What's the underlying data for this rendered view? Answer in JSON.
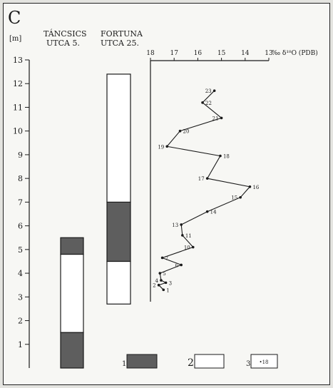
{
  "panel_label": "C",
  "colors": {
    "filled": "#5e5e5e",
    "stroke": "#1a1a1a",
    "empty": "#ffffff"
  },
  "chart_data": [
    {
      "type": "table",
      "subtype": "stratigraphic-column",
      "unit_label": "[m]",
      "ylim": [
        0,
        13
      ],
      "y_ticks": [
        1,
        2,
        3,
        4,
        5,
        6,
        7,
        8,
        9,
        10,
        11,
        12,
        13
      ],
      "columns": [
        {
          "name_line1": "TÁNCSICS",
          "name_line2": "UTCA 5.",
          "intervals": [
            {
              "bottom": 0.0,
              "top": 1.5,
              "type": 1
            },
            {
              "bottom": 1.5,
              "top": 4.8,
              "type": 2
            },
            {
              "bottom": 4.8,
              "top": 5.5,
              "type": 1
            }
          ]
        },
        {
          "name_line1": "FORTUNA",
          "name_line2": "UTCA 25.",
          "intervals": [
            {
              "bottom": 2.7,
              "top": 4.5,
              "type": 2
            },
            {
              "bottom": 4.5,
              "top": 7.0,
              "type": 1
            },
            {
              "bottom": 7.0,
              "top": 12.4,
              "type": 2
            }
          ]
        }
      ]
    },
    {
      "type": "line",
      "title": "‰ δ¹⁸O (PDB)",
      "x_ticks": [
        "18",
        "17",
        "16",
        "15",
        "14",
        "13"
      ],
      "xlim": [
        18,
        13
      ],
      "ylim": [
        0,
        13
      ],
      "points": [
        {
          "label": "1",
          "x": 17.45,
          "y": 3.3
        },
        {
          "label": "2",
          "x": 17.65,
          "y": 3.5
        },
        {
          "label": "3",
          "x": 17.35,
          "y": 3.6
        },
        {
          "label": "4",
          "x": 17.55,
          "y": 3.7
        },
        {
          "label": "5",
          "x": 17.6,
          "y": 4.0
        },
        {
          "label": "6",
          "x": 16.7,
          "y": 4.35
        },
        {
          "label": "7",
          "x": 17.5,
          "y": 4.65
        },
        {
          "label": "10",
          "x": 16.2,
          "y": 5.1
        },
        {
          "label": "11",
          "x": 16.65,
          "y": 5.6
        },
        {
          "label": "13",
          "x": 16.7,
          "y": 6.05
        },
        {
          "label": "14",
          "x": 15.6,
          "y": 6.6
        },
        {
          "label": "15",
          "x": 14.2,
          "y": 7.2
        },
        {
          "label": "16",
          "x": 13.8,
          "y": 7.65
        },
        {
          "label": "17",
          "x": 15.6,
          "y": 8.0
        },
        {
          "label": "18",
          "x": 15.05,
          "y": 8.95
        },
        {
          "label": "19",
          "x": 17.3,
          "y": 9.35
        },
        {
          "label": "20",
          "x": 16.75,
          "y": 10.0
        },
        {
          "label": "21",
          "x": 15.0,
          "y": 10.55
        },
        {
          "label": "22",
          "x": 15.8,
          "y": 11.2
        },
        {
          "label": "23",
          "x": 15.3,
          "y": 11.7
        }
      ]
    }
  ],
  "legend": [
    {
      "number": "1",
      "kind": "filled",
      "text": ""
    },
    {
      "number": "2",
      "kind": "empty",
      "text": ""
    },
    {
      "number": "3",
      "kind": "point",
      "text": "•18"
    }
  ]
}
